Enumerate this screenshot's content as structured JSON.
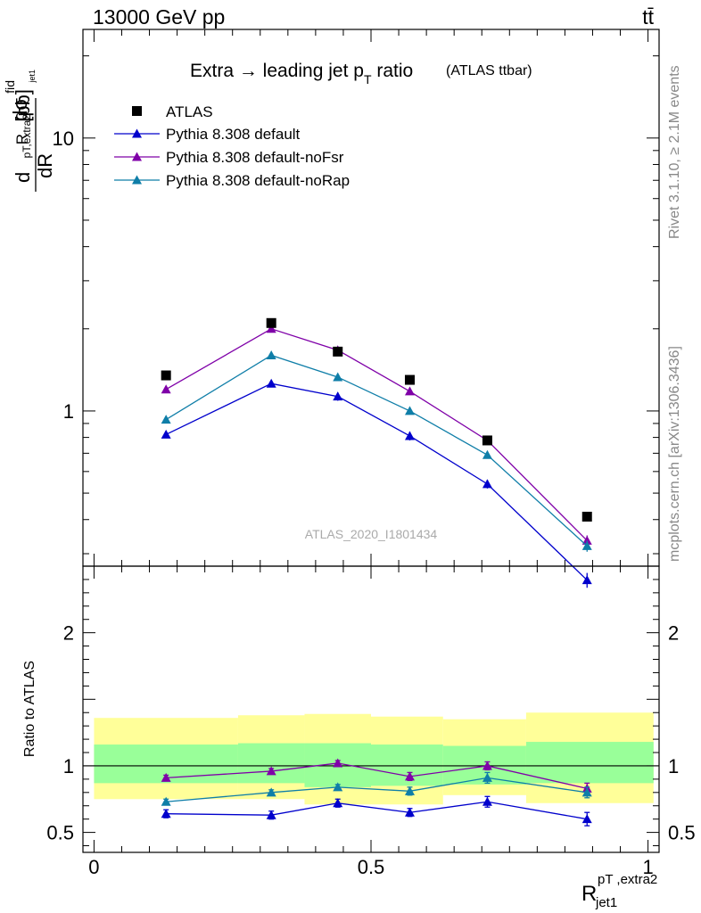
{
  "header": {
    "energy": "13000 GeV pp",
    "process": "tt̄",
    "rivet": "Rivet 3.1.10, ≥ 2.1M events",
    "site": "mcplots.cern.ch [arXiv:1306.3436]",
    "analysis": "ATLAS_2020_I1801434"
  },
  "chart_data": {
    "type": "scatter",
    "title_main": "Extra → leading jet p",
    "title_sub": "T",
    "title_tail": " ratio",
    "title_small": "(ATLAS ttbar)",
    "ylabel": "dσ/dR [pb]",
    "ylabel_parts": {
      "d": "d",
      "sigma": "dσ",
      "fid": "fid",
      "R": "R",
      "sub1": "pT,extra2",
      "sub2": "jet1",
      "dR": "dR",
      "unit": "[pb]"
    },
    "xlabel_parts": {
      "R": "R",
      "sup": "pT ,extra2",
      "sub": "jet1"
    },
    "ratio_ylabel": "Ratio to ATLAS",
    "x": [
      0.13,
      0.32,
      0.44,
      0.57,
      0.71,
      0.89
    ],
    "xlim": [
      -0.02,
      1.02
    ],
    "ylim": [
      0.27,
      25
    ],
    "yscale": "log",
    "yticks": [
      {
        "v": 1,
        "label": "1"
      },
      {
        "v": 10,
        "label": "10"
      }
    ],
    "xticks": [
      {
        "v": 0,
        "label": "0"
      },
      {
        "v": 0.5,
        "label": "0.5"
      },
      {
        "v": 1,
        "label": "1"
      }
    ],
    "data": {
      "name": "ATLAS",
      "color": "#000000",
      "values": [
        1.35,
        2.1,
        1.65,
        1.3,
        0.78,
        0.41
      ]
    },
    "series": [
      {
        "name": "Pythia 8.308 default",
        "color": "#0000cc",
        "values": [
          0.82,
          1.26,
          1.13,
          0.81,
          0.54,
          0.24
        ],
        "err": [
          0.02,
          0.04,
          0.04,
          0.03,
          0.02,
          0.015
        ],
        "ratio": [
          0.64,
          0.63,
          0.72,
          0.65,
          0.73,
          0.6
        ],
        "ratio_err": [
          0.03,
          0.03,
          0.03,
          0.03,
          0.04,
          0.05
        ]
      },
      {
        "name": "Pythia 8.308 default-noFsr",
        "color": "#7f00a8",
        "values": [
          1.2,
          2.0,
          1.67,
          1.18,
          0.78,
          0.335
        ],
        "err": [
          0.02,
          0.04,
          0.04,
          0.03,
          0.02,
          0.015
        ],
        "ratio": [
          0.91,
          0.96,
          1.02,
          0.92,
          1.0,
          0.83
        ],
        "ratio_err": [
          0.02,
          0.02,
          0.02,
          0.03,
          0.03,
          0.04
        ]
      },
      {
        "name": "Pythia 8.308 default-noRap",
        "color": "#0f7ea8",
        "values": [
          0.93,
          1.6,
          1.33,
          1.0,
          0.69,
          0.32
        ],
        "err": [
          0.02,
          0.03,
          0.03,
          0.03,
          0.02,
          0.015
        ],
        "ratio": [
          0.73,
          0.8,
          0.84,
          0.81,
          0.91,
          0.8
        ],
        "ratio_err": [
          0.02,
          0.02,
          0.02,
          0.03,
          0.04,
          0.04
        ]
      }
    ],
    "ratio_ylim": [
      0.35,
      2.5
    ],
    "ratio_yticks": [
      {
        "v": 0.5,
        "label": "0.5"
      },
      {
        "v": 1,
        "label": "1"
      },
      {
        "v": 2,
        "label": "2"
      }
    ],
    "bands": {
      "edges": [
        0.0,
        0.26,
        0.38,
        0.5,
        0.63,
        0.78,
        1.01
      ],
      "yellow_lo": [
        0.75,
        0.75,
        0.71,
        0.71,
        0.78,
        0.72
      ],
      "yellow_hi": [
        1.36,
        1.38,
        1.39,
        1.37,
        1.35,
        1.4
      ],
      "green_lo": [
        0.87,
        0.87,
        0.84,
        0.85,
        0.86,
        0.87
      ],
      "green_hi": [
        1.16,
        1.17,
        1.17,
        1.16,
        1.15,
        1.18
      ],
      "yellow_color": "#ffff99",
      "green_color": "#99ff99"
    },
    "legend_placement": "top-left"
  }
}
